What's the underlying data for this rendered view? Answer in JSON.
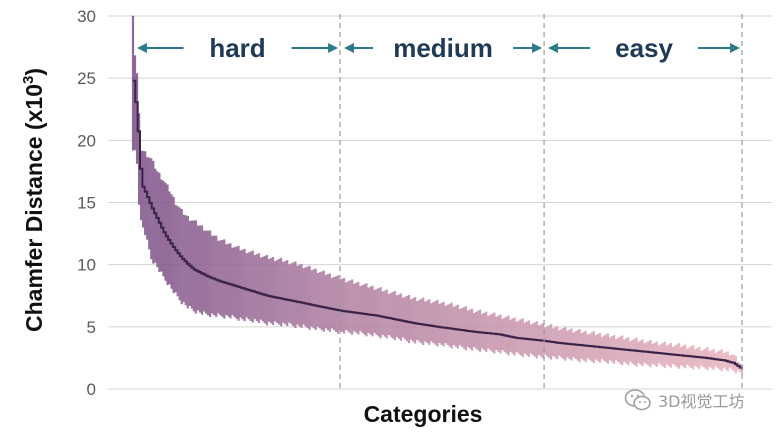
{
  "chart_data": {
    "type": "line",
    "xlabel": "Categories",
    "ylabel_base": "Chamfer Distance (x10",
    "ylabel_exp": "3",
    "ylabel_close": ")",
    "ylim": [
      0,
      30
    ],
    "yticks": [
      "0",
      "5",
      "10",
      "15",
      "20",
      "25",
      "30"
    ],
    "grid": "horizontal",
    "band_color_start": "#7a4f86",
    "band_color_end": "#e8b3bd",
    "line_color": "#3a2248",
    "arrow_color": "#2e7a8a",
    "regions": [
      {
        "label": "hard",
        "start": 0,
        "end": 0.34
      },
      {
        "label": "medium",
        "start": 0.34,
        "end": 0.675
      },
      {
        "label": "easy",
        "start": 0.675,
        "end": 1.0
      }
    ],
    "median_curve": [
      [
        0.0,
        24.8
      ],
      [
        0.003,
        23.5
      ],
      [
        0.006,
        22.0
      ],
      [
        0.01,
        19.0
      ],
      [
        0.013,
        16.5
      ],
      [
        0.02,
        15.8
      ],
      [
        0.03,
        14.6
      ],
      [
        0.04,
        13.6
      ],
      [
        0.05,
        12.6
      ],
      [
        0.06,
        11.8
      ],
      [
        0.07,
        11.1
      ],
      [
        0.08,
        10.5
      ],
      [
        0.09,
        10.0
      ],
      [
        0.1,
        9.6
      ],
      [
        0.12,
        9.1
      ],
      [
        0.14,
        8.7
      ],
      [
        0.16,
        8.4
      ],
      [
        0.18,
        8.1
      ],
      [
        0.2,
        7.8
      ],
      [
        0.22,
        7.5
      ],
      [
        0.25,
        7.2
      ],
      [
        0.28,
        6.9
      ],
      [
        0.31,
        6.6
      ],
      [
        0.34,
        6.3
      ],
      [
        0.37,
        6.1
      ],
      [
        0.4,
        5.9
      ],
      [
        0.43,
        5.6
      ],
      [
        0.46,
        5.3
      ],
      [
        0.5,
        5.0
      ],
      [
        0.53,
        4.8
      ],
      [
        0.56,
        4.6
      ],
      [
        0.6,
        4.4
      ],
      [
        0.63,
        4.1
      ],
      [
        0.67,
        3.9
      ],
      [
        0.7,
        3.7
      ],
      [
        0.74,
        3.5
      ],
      [
        0.78,
        3.3
      ],
      [
        0.82,
        3.1
      ],
      [
        0.86,
        2.9
      ],
      [
        0.9,
        2.7
      ],
      [
        0.94,
        2.5
      ],
      [
        0.97,
        2.3
      ],
      [
        0.985,
        2.1
      ],
      [
        1.0,
        1.6
      ]
    ],
    "band_upper": [
      [
        0.0,
        30.2
      ],
      [
        0.003,
        27.0
      ],
      [
        0.006,
        26.0
      ],
      [
        0.01,
        22.0
      ],
      [
        0.013,
        19.3
      ],
      [
        0.02,
        19.0
      ],
      [
        0.03,
        18.5
      ],
      [
        0.04,
        17.5
      ],
      [
        0.05,
        16.8
      ],
      [
        0.06,
        16.0
      ],
      [
        0.07,
        15.0
      ],
      [
        0.08,
        14.3
      ],
      [
        0.09,
        13.8
      ],
      [
        0.1,
        13.5
      ],
      [
        0.12,
        12.8
      ],
      [
        0.14,
        12.1
      ],
      [
        0.16,
        11.6
      ],
      [
        0.18,
        11.2
      ],
      [
        0.2,
        10.9
      ],
      [
        0.22,
        10.6
      ],
      [
        0.25,
        10.3
      ],
      [
        0.28,
        9.9
      ],
      [
        0.31,
        9.4
      ],
      [
        0.34,
        8.9
      ],
      [
        0.37,
        8.5
      ],
      [
        0.4,
        8.1
      ],
      [
        0.43,
        7.7
      ],
      [
        0.46,
        7.3
      ],
      [
        0.5,
        7.0
      ],
      [
        0.53,
        6.7
      ],
      [
        0.56,
        6.3
      ],
      [
        0.6,
        5.9
      ],
      [
        0.63,
        5.6
      ],
      [
        0.67,
        5.2
      ],
      [
        0.7,
        4.9
      ],
      [
        0.74,
        4.6
      ],
      [
        0.78,
        4.3
      ],
      [
        0.82,
        4.0
      ],
      [
        0.86,
        3.7
      ],
      [
        0.9,
        3.5
      ],
      [
        0.94,
        3.2
      ],
      [
        0.97,
        3.0
      ],
      [
        0.985,
        2.8
      ],
      [
        1.0,
        1.9
      ]
    ],
    "band_lower": [
      [
        0.0,
        19.0
      ],
      [
        0.003,
        19.2
      ],
      [
        0.006,
        18.8
      ],
      [
        0.01,
        15.0
      ],
      [
        0.013,
        13.5
      ],
      [
        0.02,
        12.5
      ],
      [
        0.03,
        10.5
      ],
      [
        0.04,
        9.8
      ],
      [
        0.05,
        9.0
      ],
      [
        0.06,
        8.3
      ],
      [
        0.07,
        7.6
      ],
      [
        0.08,
        7.0
      ],
      [
        0.09,
        6.6
      ],
      [
        0.1,
        6.3
      ],
      [
        0.12,
        6.0
      ],
      [
        0.14,
        5.9
      ],
      [
        0.16,
        5.8
      ],
      [
        0.18,
        5.6
      ],
      [
        0.2,
        5.5
      ],
      [
        0.22,
        5.3
      ],
      [
        0.25,
        5.2
      ],
      [
        0.28,
        5.0
      ],
      [
        0.31,
        4.8
      ],
      [
        0.34,
        4.6
      ],
      [
        0.37,
        4.5
      ],
      [
        0.4,
        4.3
      ],
      [
        0.43,
        4.1
      ],
      [
        0.46,
        3.8
      ],
      [
        0.5,
        3.6
      ],
      [
        0.53,
        3.4
      ],
      [
        0.56,
        3.2
      ],
      [
        0.6,
        3.0
      ],
      [
        0.63,
        2.8
      ],
      [
        0.67,
        2.6
      ],
      [
        0.7,
        2.5
      ],
      [
        0.74,
        2.3
      ],
      [
        0.78,
        2.2
      ],
      [
        0.82,
        2.0
      ],
      [
        0.86,
        1.9
      ],
      [
        0.9,
        1.8
      ],
      [
        0.94,
        1.7
      ],
      [
        0.97,
        1.6
      ],
      [
        0.985,
        1.5
      ],
      [
        1.0,
        1.3
      ]
    ]
  },
  "watermark": {
    "text": "3D视觉工坊",
    "icon": "wechat-icon"
  }
}
